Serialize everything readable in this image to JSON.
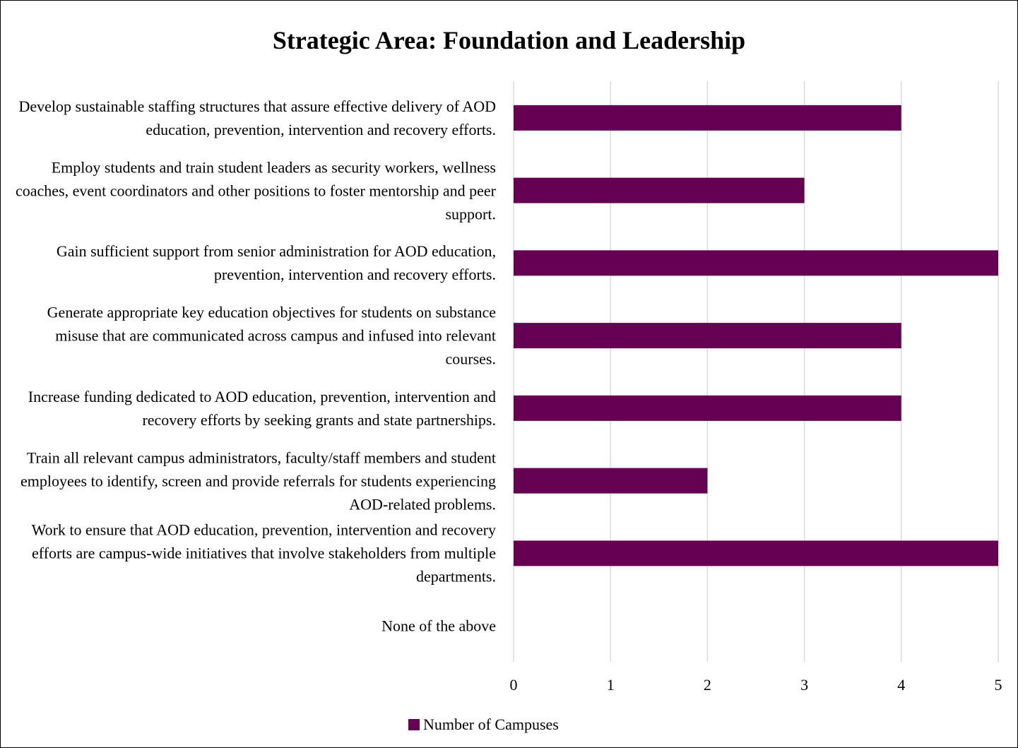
{
  "chart_data": {
    "type": "bar",
    "orientation": "horizontal",
    "title": "Strategic Area: Foundation and Leadership",
    "categories": [
      "Develop sustainable staffing structures that assure effective delivery of AOD education, prevention, intervention and recovery efforts.",
      "Employ students and train student leaders as security workers, wellness coaches, event coordinators and other positions to foster mentorship and peer support.",
      "Gain sufficient support from senior administration for AOD education, prevention, intervention and recovery efforts.",
      "Generate appropriate key education objectives for students on substance misuse that are communicated across campus and infused into relevant courses.",
      "Increase funding dedicated to AOD education, prevention, intervention and recovery efforts by seeking grants and state partnerships.",
      "Train all relevant campus administrators, faculty/staff members and student employees to identify, screen and provide referrals for students experiencing AOD-related problems.",
      "Work to ensure that AOD education, prevention, intervention and recovery efforts are campus-wide initiatives that involve stakeholders from multiple departments.",
      "None of the above"
    ],
    "series": [
      {
        "name": "Number of Campuses",
        "color": "#660052",
        "values": [
          4,
          3,
          5,
          4,
          4,
          2,
          5,
          0
        ]
      }
    ],
    "xlim": [
      0,
      5
    ],
    "xticks": [
      0,
      1,
      2,
      3,
      4,
      5
    ],
    "grid": true,
    "legend": "bottom"
  }
}
